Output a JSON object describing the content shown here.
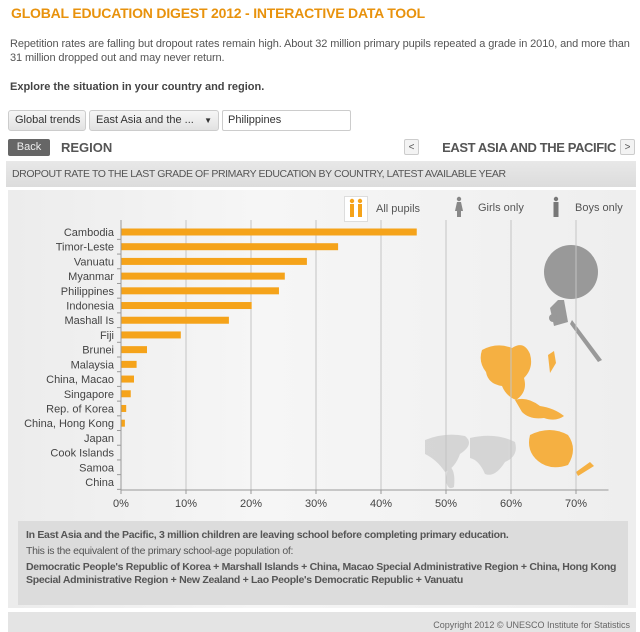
{
  "header": {
    "title": "GLOBAL EDUCATION DIGEST 2012 - INTERACTIVE DATA TOOL",
    "intro": "Repetition rates are falling but dropout rates remain high. About 32 million primary pupils repeated a grade in 2010, and more than 31 million dropped out and may never return.",
    "explore": "Explore the situation in your country and region."
  },
  "controls": {
    "global_trends": "Global trends",
    "region_select": "East Asia and the ...",
    "region_select_icon": "triangle-down",
    "country_input": "Philippines",
    "back": "Back",
    "level": "REGION",
    "prev": "<",
    "next": ">",
    "region_name": "EAST ASIA AND THE PACIFIC"
  },
  "chart_heading": "DROPOUT RATE TO THE LAST GRADE OF PRIMARY EDUCATION BY COUNTRY, LATEST AVAILABLE YEAR",
  "filters": [
    {
      "label": "All pupils",
      "icon": "two-pupils-icon",
      "selected": true
    },
    {
      "label": "Girls only",
      "icon": "girl-icon",
      "selected": false
    },
    {
      "label": "Boys only",
      "icon": "boy-icon",
      "selected": false
    }
  ],
  "colors": {
    "accent": "#f5a31a",
    "title": "#e8920c",
    "map_highlight": "#f5b042",
    "map_gray": "#c8c8c8"
  },
  "chart_data": {
    "type": "bar",
    "orientation": "horizontal",
    "categories": [
      "Cambodia",
      "Timor-Leste",
      "Vanuatu",
      "Myanmar",
      "Philippines",
      "Indonesia",
      "Mashall Is",
      "Fiji",
      "Brunei",
      "Malaysia",
      "China, Macao",
      "Singapore",
      "Rep. of Korea",
      "China, Hong Kong",
      "Japan",
      "Cook Islands",
      "Samoa",
      "China"
    ],
    "values": [
      45.5,
      33.4,
      28.6,
      25.2,
      24.3,
      20.1,
      16.6,
      9.2,
      4.0,
      2.4,
      2.0,
      1.5,
      0.8,
      0.6,
      0,
      0,
      0,
      0
    ],
    "xlim": [
      0,
      75
    ],
    "ticks": [
      0,
      10,
      20,
      30,
      40,
      50,
      60,
      70
    ],
    "tick_labels": [
      "0%",
      "10%",
      "20%",
      "30%",
      "40%",
      "50%",
      "60%",
      "70%"
    ],
    "grid": true,
    "color": "#f5a31a"
  },
  "info": {
    "headline": "In East Asia and the Pacific, 3 million children are leaving school before completing primary education.",
    "equivalent": "This is the equivalent of the primary school-age population of:",
    "countries": "Democratic People's Republic of Korea + Marshall Islands + China, Macao Special Administrative Region + China, Hong Kong Special Administrative Region + New Zealand + Lao People's Democratic Republic + Vanuatu"
  },
  "footer": "Copyright 2012 © UNESCO Institute for Statistics"
}
